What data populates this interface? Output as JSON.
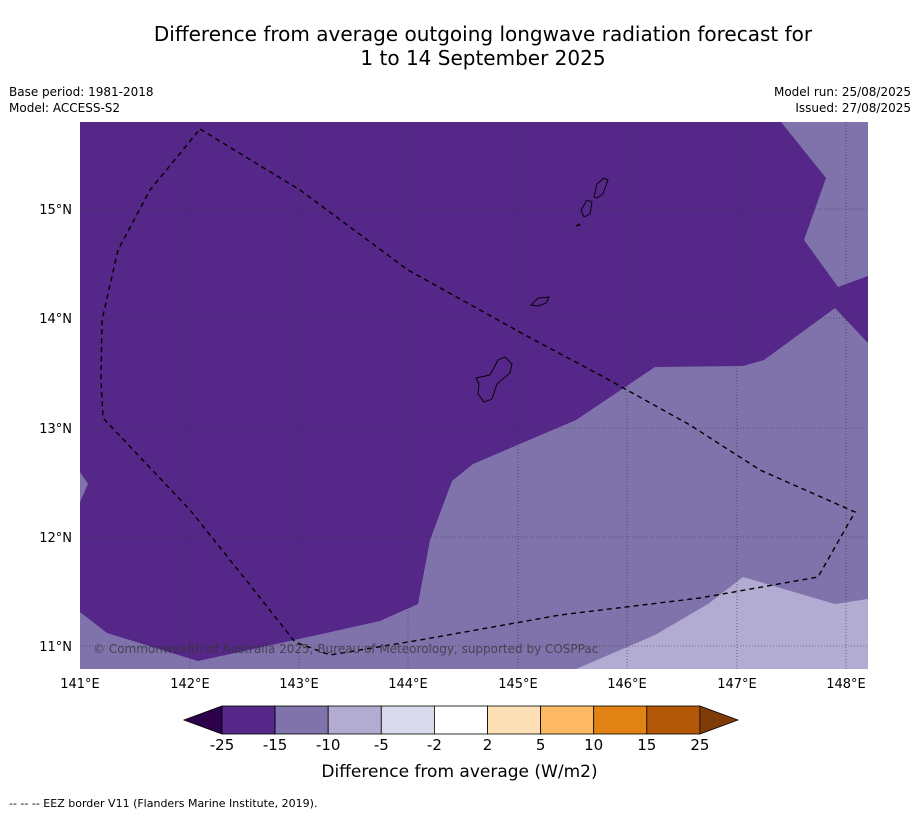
{
  "title_line1": "Difference from average outgoing longwave radiation forecast for",
  "title_line2": "1 to 14 September 2025",
  "meta": {
    "base_period": "Base period: 1981-2018",
    "model": "Model: ACCESS-S2",
    "model_run": "Model run: 25/08/2025",
    "issued": "Issued: 27/08/2025"
  },
  "map": {
    "copyright": "© Commonwealth of Australia 2025, Bureau of Meteorology, supported by COSPPac",
    "lon_ticks": [
      "141°E",
      "142°E",
      "143°E",
      "144°E",
      "145°E",
      "146°E",
      "147°E",
      "148°E"
    ],
    "lat_ticks": [
      "15°N",
      "14°N",
      "13°N",
      "12°N",
      "11°N"
    ],
    "lon_range": [
      141.0,
      148.2
    ],
    "lat_range": [
      10.8,
      15.8
    ]
  },
  "colorbar": {
    "title": "Difference from average (W/m2)",
    "labels": [
      "-25",
      "-15",
      "-10",
      "-5",
      "-2",
      "2",
      "5",
      "10",
      "15",
      "25"
    ],
    "colors": [
      "#2d004b",
      "#542788",
      "#8073ac",
      "#b2abd2",
      "#d8daeb",
      "#ffffff",
      "#fee0b6",
      "#fdb863",
      "#e08214",
      "#b35806",
      "#7f3b08"
    ]
  },
  "footnote": "--  --  -- EEZ border V11 (Flanders Marine Institute, 2019)."
}
